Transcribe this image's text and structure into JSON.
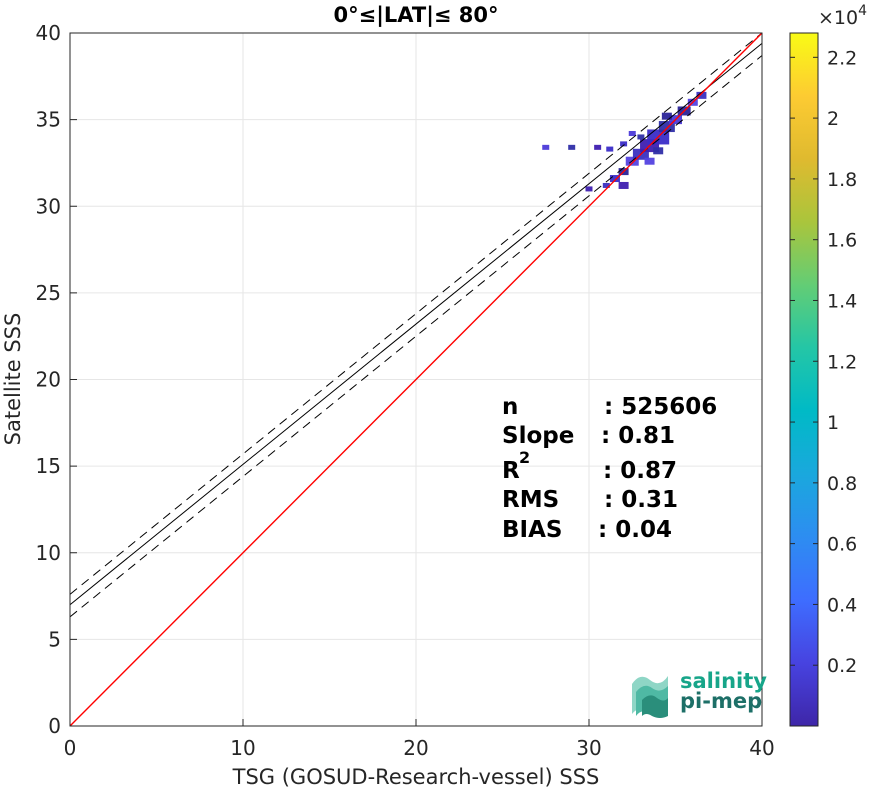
{
  "chart_data": {
    "type": "heatmap",
    "title": "0°≤|LAT|≤ 80°",
    "xlabel": "TSG (GOSUD-Research-vessel) SSS",
    "ylabel": "Satellite SSS",
    "xlim": [
      0,
      40
    ],
    "ylim": [
      0,
      40
    ],
    "xticks": [
      "0",
      "10",
      "20",
      "30",
      "40"
    ],
    "yticks": [
      "0",
      "5",
      "10",
      "15",
      "20",
      "25",
      "30",
      "35",
      "40"
    ],
    "grid": true,
    "lines": {
      "identity": {
        "slope": 1,
        "intercept": 0,
        "color": "#ff0000"
      },
      "regression": {
        "slope": 0.81,
        "intercept": 7.0,
        "color": "#000000"
      },
      "regression_upper": {
        "slope": 0.81,
        "intercept": 7.6,
        "color": "#000000",
        "dash": true
      },
      "regression_lower": {
        "slope": 0.81,
        "intercept": 6.3,
        "color": "#000000",
        "dash": true
      }
    },
    "density_points": [
      [
        30.5,
        33.4,
        1
      ],
      [
        31.2,
        33.3,
        1
      ],
      [
        29.0,
        33.4,
        1
      ],
      [
        27.5,
        33.4,
        1
      ],
      [
        32.0,
        32.0,
        2
      ],
      [
        32.5,
        32.6,
        3
      ],
      [
        33.0,
        33.0,
        4
      ],
      [
        33.5,
        33.5,
        5
      ],
      [
        34.0,
        34.0,
        6
      ],
      [
        34.5,
        34.6,
        4
      ],
      [
        35.0,
        35.0,
        3
      ],
      [
        35.5,
        35.5,
        3
      ],
      [
        36.0,
        36.0,
        2
      ],
      [
        36.5,
        36.4,
        2
      ],
      [
        32.0,
        31.2,
        2
      ],
      [
        31.5,
        31.6,
        2
      ],
      [
        33.0,
        34.0,
        1
      ],
      [
        32.5,
        34.2,
        1
      ],
      [
        34.5,
        35.2,
        2
      ],
      [
        33.5,
        32.6,
        2
      ],
      [
        31.0,
        31.2,
        1
      ],
      [
        30.0,
        31.0,
        1
      ],
      [
        32.0,
        33.6,
        1
      ],
      [
        34.0,
        33.2,
        2
      ]
    ],
    "colorbar": {
      "min": 0,
      "max": 2.28,
      "exponent_label": "×10",
      "exponent": "4",
      "ticks": [
        "0.2",
        "0.4",
        "0.6",
        "0.8",
        "1",
        "1.2",
        "1.4",
        "1.6",
        "1.8",
        "2",
        "2.2"
      ],
      "colors": [
        "#3e26a8",
        "#4743e0",
        "#3e6dff",
        "#2d8df1",
        "#1aa8dd",
        "#00bac6",
        "#24c6a6",
        "#63cd75",
        "#aac53c",
        "#dfba2f",
        "#fdcb32",
        "#f9fb15"
      ]
    },
    "stats": {
      "n_label": "n",
      "n_value": ": 525606",
      "slope_label": "Slope",
      "slope_value": ": 0.81",
      "r2_label": "R",
      "r2_sup": "2",
      "r2_value": ": 0.87",
      "rms_label": "RMS",
      "rms_value": ": 0.31",
      "bias_label": "BIAS",
      "bias_value": ": 0.04"
    },
    "logo": {
      "line1": "salinity",
      "line2": "pi-mep"
    }
  }
}
